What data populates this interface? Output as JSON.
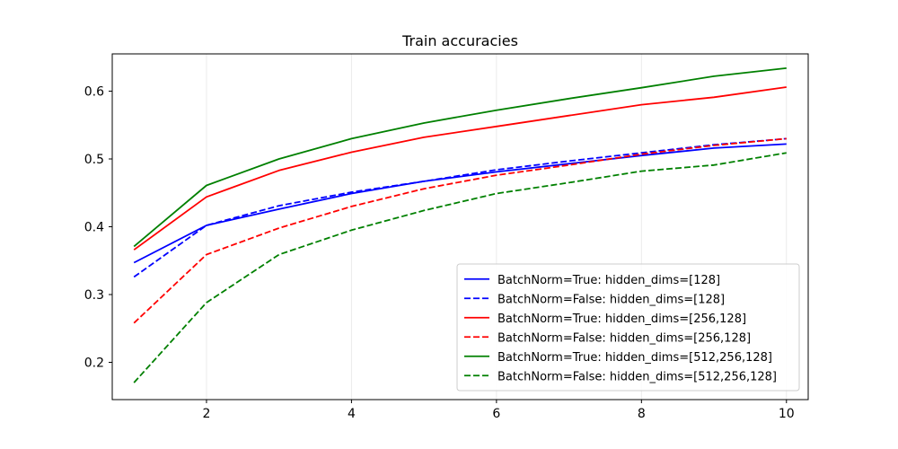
{
  "chart_data": {
    "type": "line",
    "title": "Train accuracies",
    "xlabel": "",
    "ylabel": "",
    "xlim": [
      0.7,
      10.3
    ],
    "ylim": [
      0.145,
      0.655
    ],
    "xticks": [
      2,
      4,
      6,
      8,
      10
    ],
    "yticks": [
      0.2,
      0.3,
      0.4,
      0.5,
      0.6
    ],
    "grid": "x-axis light vertical lines",
    "legend_position": "lower right",
    "x": [
      1,
      2,
      3,
      4,
      5,
      6,
      7,
      8,
      9,
      10
    ],
    "series": [
      {
        "name": "BatchNorm=True: hidden_dims=[128]",
        "color": "#0000ff",
        "dash": "solid",
        "values": [
          0.347,
          0.402,
          0.426,
          0.449,
          0.467,
          0.481,
          0.493,
          0.505,
          0.516,
          0.522
        ]
      },
      {
        "name": "BatchNorm=False: hidden_dims=[128]",
        "color": "#0000ff",
        "dash": "dashed",
        "values": [
          0.326,
          0.402,
          0.431,
          0.451,
          0.467,
          0.484,
          0.497,
          0.509,
          0.521,
          0.53
        ]
      },
      {
        "name": "BatchNorm=True: hidden_dims=[256,128]",
        "color": "#ff0000",
        "dash": "solid",
        "values": [
          0.366,
          0.444,
          0.483,
          0.51,
          0.532,
          0.548,
          0.564,
          0.58,
          0.591,
          0.606
        ]
      },
      {
        "name": "BatchNorm=False: hidden_dims=[256,128]",
        "color": "#ff0000",
        "dash": "dashed",
        "values": [
          0.258,
          0.359,
          0.398,
          0.43,
          0.456,
          0.476,
          0.491,
          0.507,
          0.52,
          0.53
        ]
      },
      {
        "name": "BatchNorm=True: hidden_dims=[512,256,128]",
        "color": "#008000",
        "dash": "solid",
        "values": [
          0.371,
          0.461,
          0.5,
          0.53,
          0.553,
          0.572,
          0.589,
          0.605,
          0.622,
          0.634
        ]
      },
      {
        "name": "BatchNorm=False: hidden_dims=[512,256,128]",
        "color": "#008000",
        "dash": "dashed",
        "values": [
          0.17,
          0.288,
          0.359,
          0.395,
          0.424,
          0.449,
          0.465,
          0.482,
          0.491,
          0.509
        ]
      }
    ]
  }
}
